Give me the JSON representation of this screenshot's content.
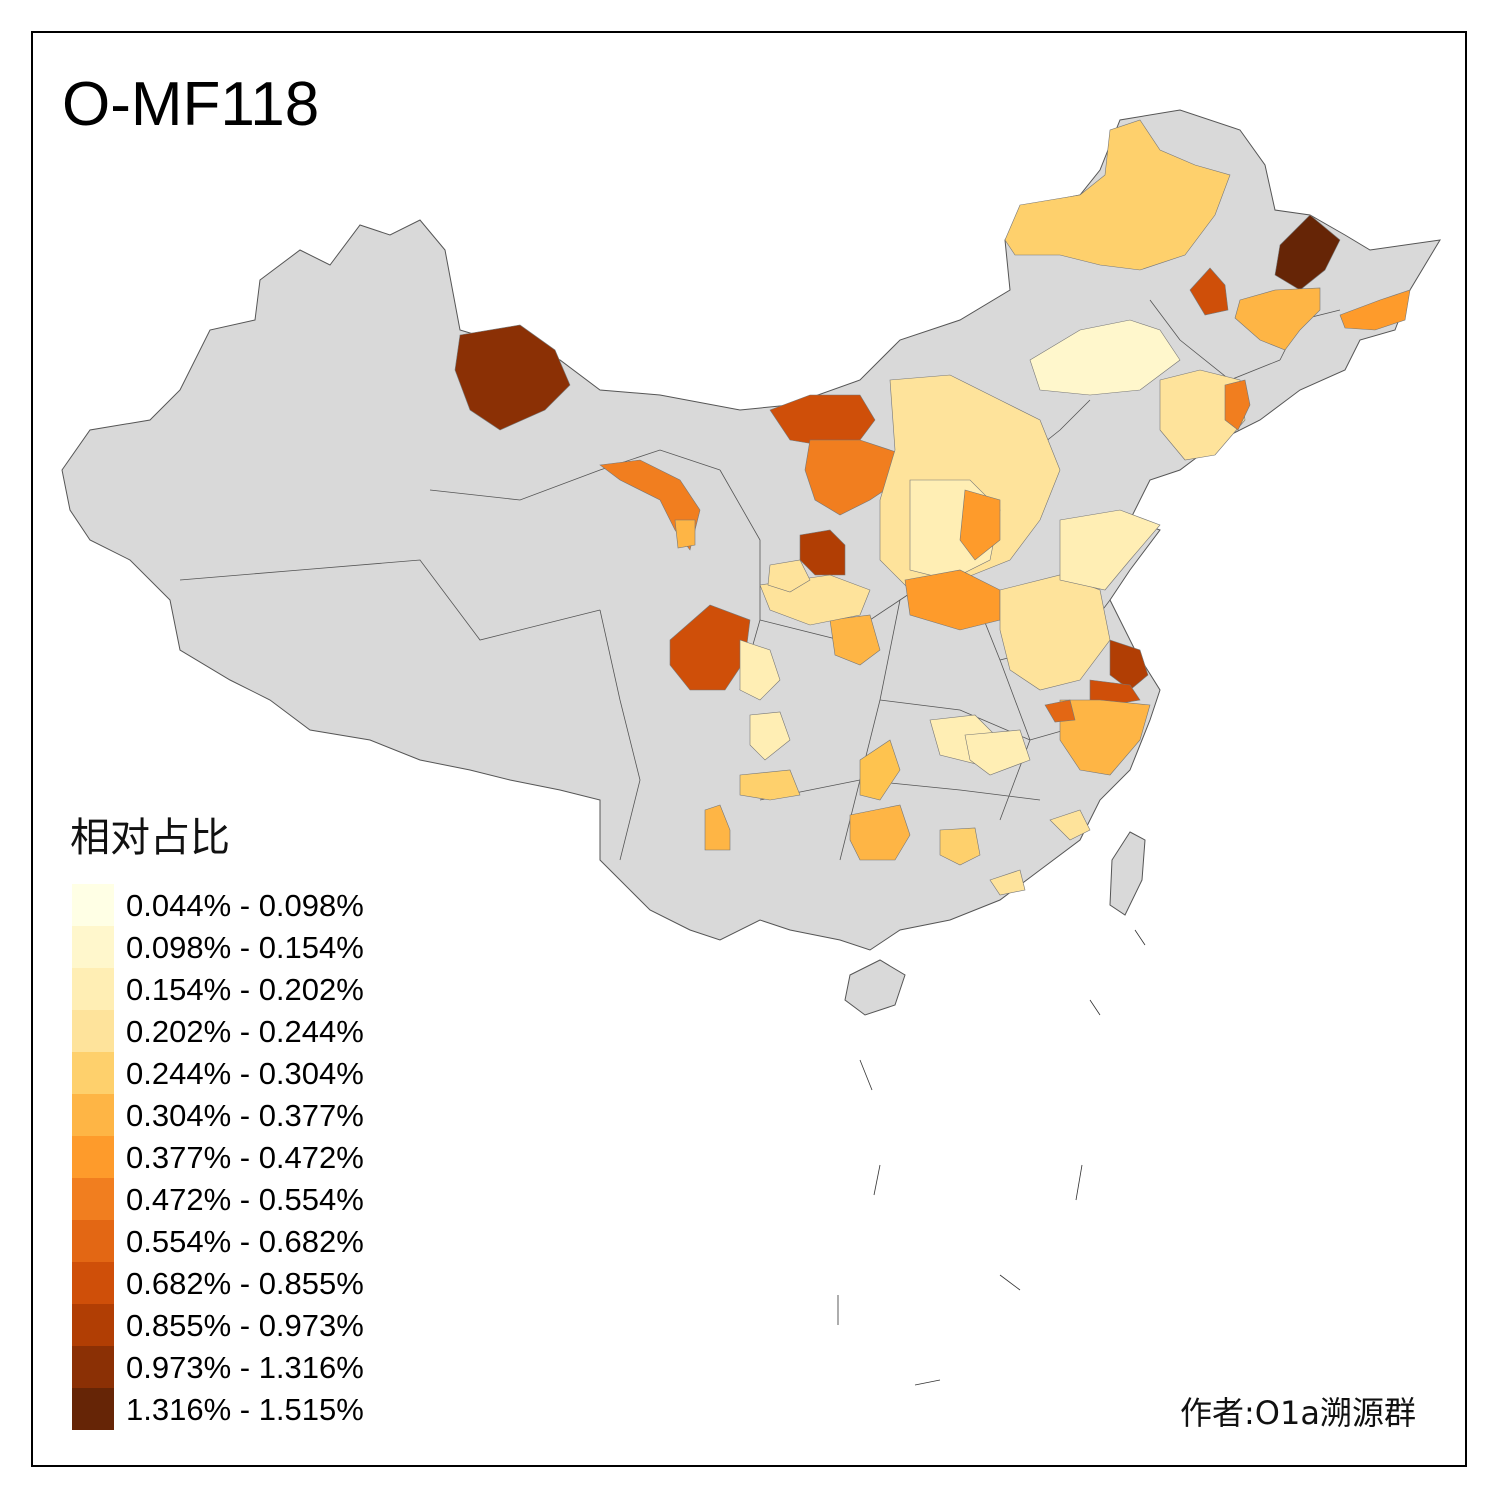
{
  "title": "O-MF118",
  "legend": {
    "title": "相对占比",
    "items": [
      {
        "label": "0.044% - 0.098%",
        "color": "#FFFFE5"
      },
      {
        "label": "0.098% - 0.154%",
        "color": "#FFF7CC"
      },
      {
        "label": "0.154% - 0.202%",
        "color": "#FFEEB4"
      },
      {
        "label": "0.202% - 0.244%",
        "color": "#FEE39B"
      },
      {
        "label": "0.244% - 0.304%",
        "color": "#FED06C"
      },
      {
        "label": "0.304% - 0.377%",
        "color": "#FEB545"
      },
      {
        "label": "0.377% - 0.472%",
        "color": "#FE9B2B"
      },
      {
        "label": "0.472% - 0.554%",
        "color": "#F17E1F"
      },
      {
        "label": "0.554% - 0.682%",
        "color": "#E36714"
      },
      {
        "label": "0.682% - 0.855%",
        "color": "#CF4F09"
      },
      {
        "label": "0.855% - 0.973%",
        "color": "#B13E04"
      },
      {
        "label": "0.973% - 1.316%",
        "color": "#8B3005"
      },
      {
        "label": "1.316% - 1.515%",
        "color": "#662506"
      }
    ]
  },
  "credit": "作者:O1a溯源群",
  "colors": {
    "no_data": "#D9D9D9",
    "border": "#555555"
  }
}
